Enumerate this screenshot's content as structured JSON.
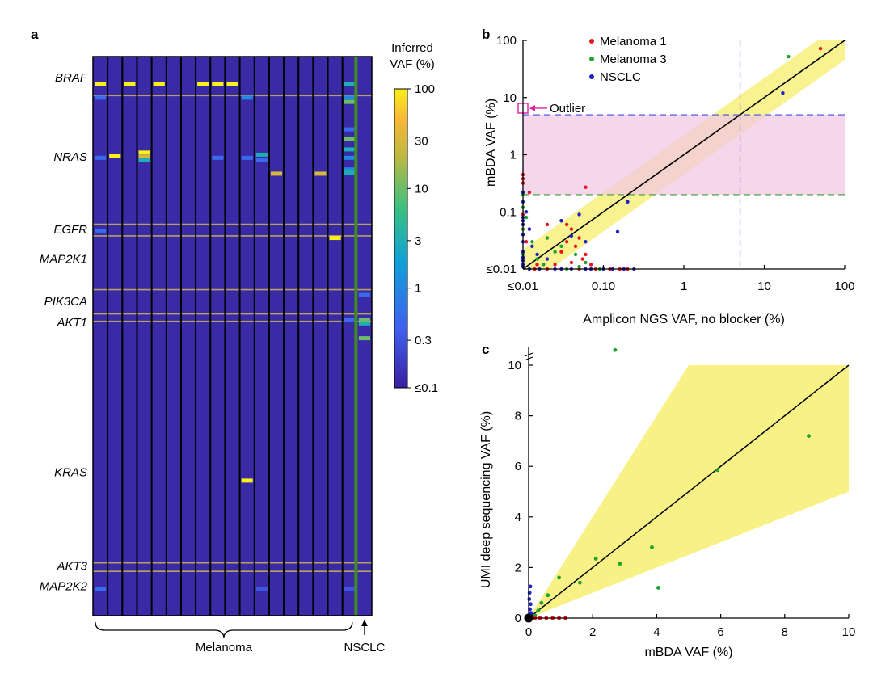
{
  "panels": {
    "a": "a",
    "b": "b",
    "c": "c"
  },
  "colors": {
    "heat_bg": "#3a2aa6",
    "heat_border": "#000000",
    "gene_line": "#b8a060",
    "nsclc_line": "#3f8b1f",
    "red": "#e8141e",
    "green": "#1fa22e",
    "blue": "#1f22c8",
    "band_yellow": "#f8f07e",
    "pink_band": "#f2c8e4",
    "outlier": "#e020a0"
  },
  "chart_data": [
    {
      "type": "heatmap",
      "panel": "a",
      "colorbar_title": [
        "Inferred",
        "VAF (%)"
      ],
      "colorbar_ticks": [
        "100",
        "30",
        "10",
        "3",
        "1",
        "0.3",
        "≤0.1"
      ],
      "colorbar_values": [
        100,
        30,
        10,
        3,
        1,
        0.3,
        0.1
      ],
      "n_columns": 19,
      "gene_labels": [
        {
          "name": "BRAF",
          "row": 2
        },
        {
          "name": "NRAS",
          "row": 9.5
        },
        {
          "name": "EGFR",
          "row": 16.4
        },
        {
          "name": "MAP2K1",
          "row": 19.2
        },
        {
          "name": "PIK3CA",
          "row": 23.2
        },
        {
          "name": "AKT1",
          "row": 25.2
        },
        {
          "name": "KRAS",
          "row": 39.4
        },
        {
          "name": "AKT3",
          "row": 48.3
        },
        {
          "name": "MAP2K2",
          "row": 50.2
        }
      ],
      "gene_boundaries": [
        3.7,
        15.9,
        17.0,
        22.1,
        24.4,
        25.1,
        48.0,
        48.8
      ],
      "n_rows": 53,
      "cells": [
        {
          "col": 0,
          "row": 2.6,
          "vaf": 100
        },
        {
          "col": 0,
          "row": 3.9,
          "vaf": 0.5
        },
        {
          "col": 0,
          "row": 9.6,
          "vaf": 0.5
        },
        {
          "col": 0,
          "row": 16.5,
          "vaf": 0.5
        },
        {
          "col": 0,
          "row": 50.5,
          "vaf": 0.5
        },
        {
          "col": 1,
          "row": 9.4,
          "vaf": 100
        },
        {
          "col": 2,
          "row": 2.6,
          "vaf": 100
        },
        {
          "col": 3,
          "row": 9.1,
          "vaf": 100
        },
        {
          "col": 3,
          "row": 9.5,
          "vaf": 30
        },
        {
          "col": 3,
          "row": 9.8,
          "vaf": 3
        },
        {
          "col": 4,
          "row": 2.6,
          "vaf": 100
        },
        {
          "col": 7,
          "row": 2.6,
          "vaf": 100
        },
        {
          "col": 8,
          "row": 2.6,
          "vaf": 100
        },
        {
          "col": 8,
          "row": 9.6,
          "vaf": 0.5
        },
        {
          "col": 9,
          "row": 2.6,
          "vaf": 100
        },
        {
          "col": 10,
          "row": 3.9,
          "vaf": 1
        },
        {
          "col": 10,
          "row": 9.6,
          "vaf": 0.5
        },
        {
          "col": 10,
          "row": 40.2,
          "vaf": 100
        },
        {
          "col": 11,
          "row": 9.3,
          "vaf": 3
        },
        {
          "col": 11,
          "row": 9.8,
          "vaf": 0.5
        },
        {
          "col": 11,
          "row": 50.5,
          "vaf": 0.3
        },
        {
          "col": 12,
          "row": 11.1,
          "vaf": 30
        },
        {
          "col": 15,
          "row": 11.1,
          "vaf": 30
        },
        {
          "col": 16,
          "row": 17.2,
          "vaf": 100
        },
        {
          "col": 17,
          "row": 2.6,
          "vaf": 3
        },
        {
          "col": 17,
          "row": 3.9,
          "vaf": 1
        },
        {
          "col": 17,
          "row": 4.3,
          "vaf": 10
        },
        {
          "col": 17,
          "row": 6.9,
          "vaf": 0.5
        },
        {
          "col": 17,
          "row": 7.8,
          "vaf": 10
        },
        {
          "col": 17,
          "row": 8.8,
          "vaf": 3
        },
        {
          "col": 17,
          "row": 9.6,
          "vaf": 1
        },
        {
          "col": 17,
          "row": 10.7,
          "vaf": 1
        },
        {
          "col": 17,
          "row": 11.0,
          "vaf": 3
        },
        {
          "col": 17,
          "row": 25.0,
          "vaf": 0.5
        },
        {
          "col": 17,
          "row": 50.5,
          "vaf": 0.3
        },
        {
          "col": 18,
          "row": 22.6,
          "vaf": 0.5
        },
        {
          "col": 18,
          "row": 25.0,
          "vaf": 10
        },
        {
          "col": 18,
          "row": 25.3,
          "vaf": 3
        },
        {
          "col": 18,
          "row": 26.7,
          "vaf": 10
        }
      ],
      "group_labels": [
        "Melanoma",
        "NSCLC"
      ]
    },
    {
      "type": "scatter",
      "panel": "b",
      "xlabel": "Amplicon NGS VAF, no blocker (%)",
      "ylabel": "mBDA VAF (%)",
      "x_scale": "log",
      "y_scale": "log",
      "xlim": [
        0.01,
        100
      ],
      "ylim": [
        0.01,
        100
      ],
      "x_ticks": [
        "≤0.01",
        "0.10",
        "1",
        "10",
        "100"
      ],
      "y_ticks": [
        "100",
        "10",
        "1",
        "0.1",
        "≤0.01"
      ],
      "tick_values": [
        0.01,
        0.1,
        1,
        10,
        100
      ],
      "legend_position": "top-left",
      "annotation": "Outlier",
      "outlier_point": [
        0.01,
        6.5
      ],
      "cutoff_x": 5,
      "cutoff_y_upper": 5,
      "cutoff_y_lower": 0.2,
      "series": [
        {
          "name": "Melanoma 1",
          "color": "red",
          "points": [
            [
              50,
              72
            ],
            [
              0.01,
              0.45
            ],
            [
              0.01,
              0.38
            ],
            [
              0.01,
              0.32
            ],
            [
              0.012,
              0.22
            ],
            [
              0.06,
              0.27
            ],
            [
              0.01,
              0.09
            ],
            [
              0.01,
              0.06
            ],
            [
              0.012,
              0.05
            ],
            [
              0.011,
              0.03
            ],
            [
              0.02,
              0.06
            ],
            [
              0.03,
              0.07
            ],
            [
              0.035,
              0.06
            ],
            [
              0.04,
              0.05
            ],
            [
              0.05,
              0.035
            ],
            [
              0.045,
              0.025
            ],
            [
              0.03,
              0.02
            ],
            [
              0.06,
              0.018
            ],
            [
              0.01,
              0.015
            ],
            [
              0.015,
              0.012
            ],
            [
              0.02,
              0.01
            ],
            [
              0.025,
              0.012
            ],
            [
              0.04,
              0.013
            ],
            [
              0.055,
              0.015
            ],
            [
              0.07,
              0.012
            ],
            [
              0.035,
              0.03
            ],
            [
              0.014,
              0.01
            ],
            [
              0.05,
              0.01
            ],
            [
              0.08,
              0.01
            ],
            [
              0.12,
              0.01
            ],
            [
              0.16,
              0.01
            ],
            [
              0.2,
              0.01
            ]
          ]
        },
        {
          "name": "Melanoma 3",
          "color": "green",
          "points": [
            [
              20,
              52
            ],
            [
              0.01,
              0.2
            ],
            [
              0.01,
              0.12
            ],
            [
              0.011,
              0.08
            ],
            [
              0.01,
              0.05
            ],
            [
              0.02,
              0.035
            ],
            [
              0.03,
              0.025
            ],
            [
              0.025,
              0.02
            ],
            [
              0.045,
              0.018
            ],
            [
              0.06,
              0.013
            ],
            [
              0.015,
              0.015
            ],
            [
              0.018,
              0.012
            ],
            [
              0.01,
              0.018
            ],
            [
              0.035,
              0.01
            ],
            [
              0.05,
              0.011
            ],
            [
              0.09,
              0.01
            ],
            [
              0.013,
              0.03
            ]
          ]
        },
        {
          "name": "NSCLC",
          "color": "blue",
          "points": [
            [
              17,
              12
            ],
            [
              0.01,
              0.22
            ],
            [
              0.01,
              0.15
            ],
            [
              0.011,
              0.1
            ],
            [
              0.01,
              0.08
            ],
            [
              0.01,
              0.07
            ],
            [
              0.01,
              0.06
            ],
            [
              0.012,
              0.05
            ],
            [
              0.01,
              0.04
            ],
            [
              0.01,
              0.03
            ],
            [
              0.013,
              0.025
            ],
            [
              0.01,
              0.02
            ],
            [
              0.015,
              0.018
            ],
            [
              0.01,
              0.016
            ],
            [
              0.01,
              0.014
            ],
            [
              0.01,
              0.012
            ],
            [
              0.01,
              0.011
            ],
            [
              0.05,
              0.09
            ],
            [
              0.03,
              0.07
            ],
            [
              0.04,
              0.038
            ],
            [
              0.06,
              0.03
            ],
            [
              0.2,
              0.15
            ],
            [
              0.15,
              0.045
            ],
            [
              0.02,
              0.015
            ],
            [
              0.025,
              0.01
            ],
            [
              0.03,
              0.01
            ],
            [
              0.04,
              0.01
            ],
            [
              0.06,
              0.01
            ],
            [
              0.07,
              0.01
            ],
            [
              0.1,
              0.01
            ],
            [
              0.13,
              0.01
            ],
            [
              0.18,
              0.01
            ],
            [
              0.24,
              0.01
            ],
            [
              0.012,
              0.01
            ],
            [
              0.016,
              0.01
            ]
          ]
        }
      ]
    },
    {
      "type": "scatter",
      "panel": "c",
      "xlabel": "mBDA VAF (%)",
      "ylabel": "UMI deep sequencing VAF (%)",
      "xlim": [
        0,
        10
      ],
      "ylim": [
        0,
        10
      ],
      "x_ticks": [
        "0",
        "2",
        "4",
        "6",
        "8",
        "10"
      ],
      "y_ticks": [
        "0",
        "2",
        "4",
        "6",
        "8",
        "10"
      ],
      "tick_values": [
        0,
        2,
        4,
        6,
        8,
        10
      ],
      "axis_break": true,
      "series": [
        {
          "color": "green",
          "points": [
            [
              2.7,
              10.6
            ],
            [
              8.75,
              7.2
            ],
            [
              5.9,
              5.85
            ],
            [
              3.85,
              2.8
            ],
            [
              2.1,
              2.35
            ],
            [
              2.85,
              2.15
            ],
            [
              4.05,
              1.2
            ],
            [
              1.6,
              1.4
            ],
            [
              0.95,
              1.6
            ],
            [
              0.6,
              0.9
            ],
            [
              0.4,
              0.6
            ],
            [
              0.3,
              0.3
            ],
            [
              0.2,
              0.1
            ]
          ]
        },
        {
          "color": "red",
          "points": [
            [
              0.35,
              0
            ],
            [
              0.55,
              0
            ],
            [
              0.75,
              0
            ],
            [
              0.95,
              0
            ],
            [
              1.15,
              0
            ],
            [
              0.2,
              0
            ]
          ]
        },
        {
          "color": "blue",
          "points": [
            [
              0.05,
              1.25
            ],
            [
              0.03,
              1.0
            ],
            [
              0.02,
              0.75
            ],
            [
              0.06,
              0.55
            ],
            [
              0.04,
              0.35
            ],
            [
              0.08,
              0.2
            ]
          ]
        },
        {
          "color": "black",
          "points": [
            [
              0,
              0
            ]
          ]
        }
      ]
    }
  ]
}
